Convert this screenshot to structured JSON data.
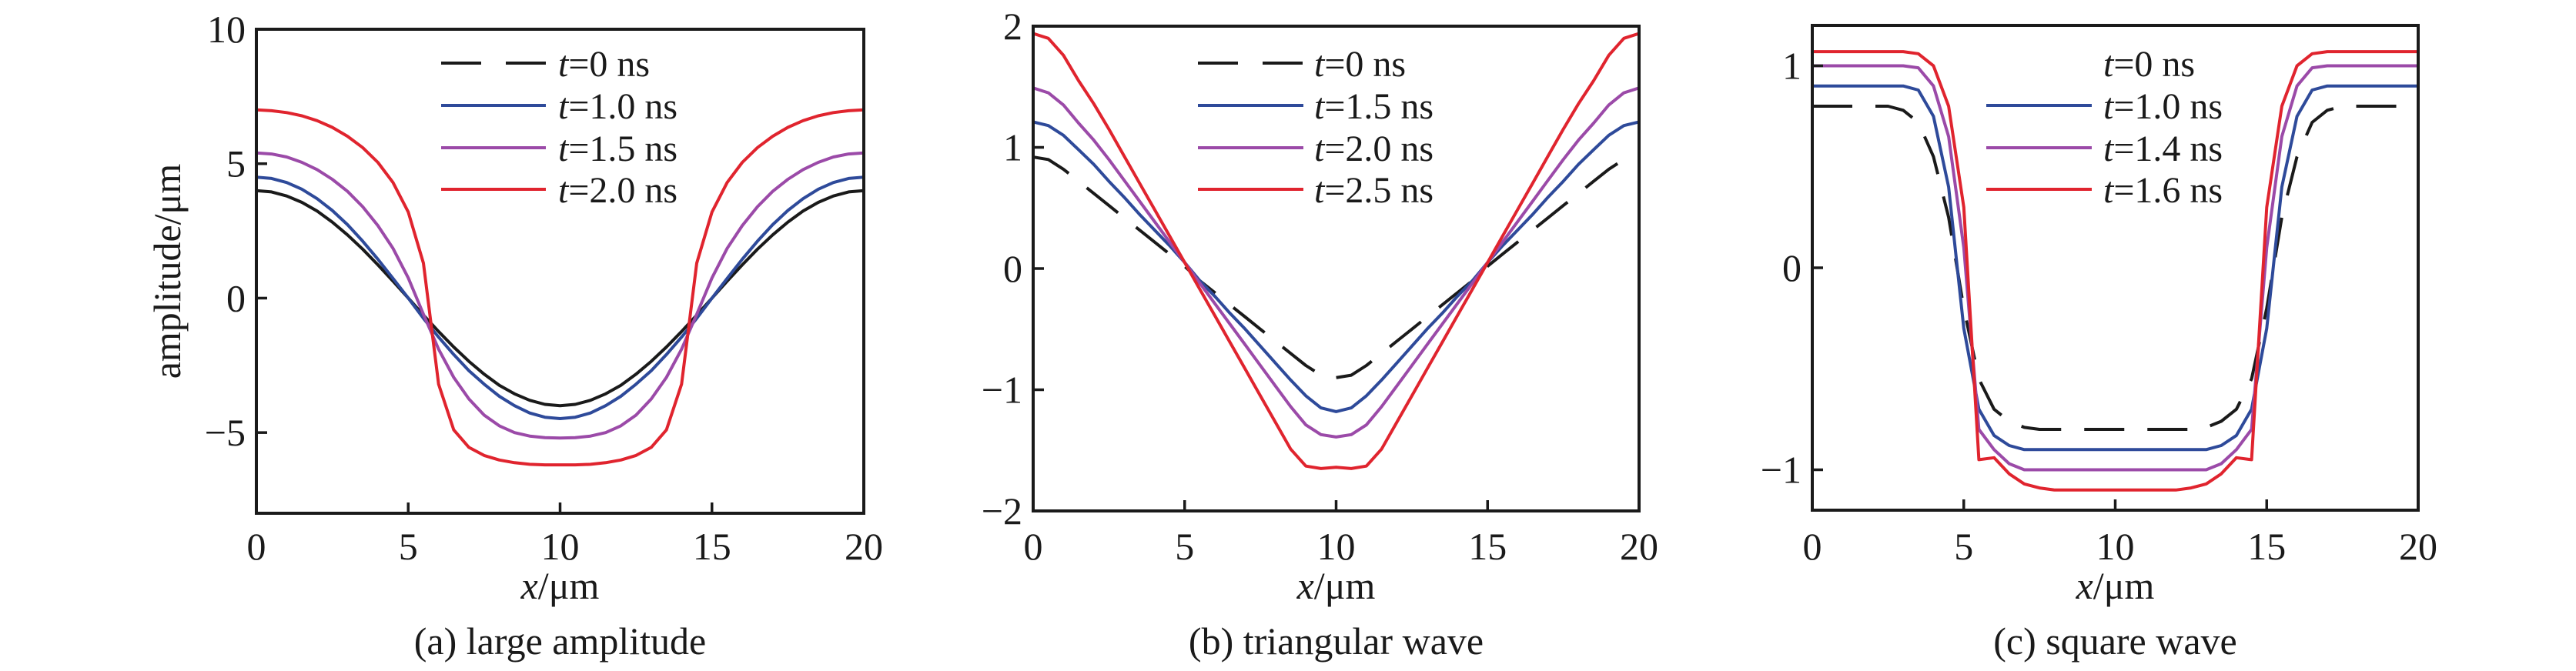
{
  "chart_data": [
    {
      "type": "line",
      "panel": "a",
      "caption": "(a) large amplitude",
      "title": "",
      "xlabel_var": "x",
      "xlabel_unit": "/μm",
      "ylabel": "amplitude/μm",
      "xlim": [
        0,
        20
      ],
      "ylim": [
        -8,
        10
      ],
      "xticks": [
        0,
        5,
        10,
        15,
        20
      ],
      "xtick_labels": [
        "0",
        "5",
        "10",
        "15",
        "20"
      ],
      "yticks": [
        -5,
        0,
        5,
        10
      ],
      "ytick_labels": [
        "−5",
        "0",
        "5",
        "10"
      ],
      "legend_placement": "top-center",
      "x": [
        0,
        0.5,
        1,
        1.5,
        2,
        2.5,
        3,
        3.5,
        4,
        4.5,
        5,
        5.5,
        6,
        6.5,
        7,
        7.5,
        8,
        8.5,
        9,
        9.5,
        10,
        10.5,
        11,
        11.5,
        12,
        12.5,
        13,
        13.5,
        14,
        14.5,
        15,
        15.5,
        16,
        16.5,
        17,
        17.5,
        18,
        18.5,
        19,
        19.5,
        20
      ],
      "series": [
        {
          "name_var": "t",
          "name_rest": "=0 ns",
          "color": "#1a1a1a",
          "style": "solid",
          "legend_style": "dashed",
          "values": [
            4,
            3.95,
            3.8,
            3.56,
            3.24,
            2.83,
            2.35,
            1.82,
            1.24,
            0.63,
            0,
            -0.63,
            -1.24,
            -1.82,
            -2.35,
            -2.83,
            -3.24,
            -3.56,
            -3.8,
            -3.95,
            -4,
            -3.95,
            -3.8,
            -3.56,
            -3.24,
            -2.83,
            -2.35,
            -1.82,
            -1.24,
            -0.63,
            0,
            0.63,
            1.24,
            1.82,
            2.35,
            2.83,
            3.24,
            3.56,
            3.8,
            3.95,
            4
          ]
        },
        {
          "name_var": "t",
          "name_rest": "=1.0 ns",
          "color": "#2e4a9a",
          "style": "solid",
          "legend_style": "solid",
          "values": [
            4.5,
            4.45,
            4.3,
            4.05,
            3.7,
            3.26,
            2.73,
            2.12,
            1.45,
            0.73,
            0,
            -0.75,
            -1.45,
            -2.1,
            -2.7,
            -3.2,
            -3.65,
            -4,
            -4.27,
            -4.43,
            -4.48,
            -4.43,
            -4.27,
            -4,
            -3.65,
            -3.2,
            -2.7,
            -2.1,
            -1.45,
            -0.75,
            0,
            0.73,
            1.45,
            2.12,
            2.73,
            3.26,
            3.7,
            4.05,
            4.3,
            4.45,
            4.5
          ]
        },
        {
          "name_var": "t",
          "name_rest": "=1.5 ns",
          "color": "#9b4aa8",
          "style": "solid",
          "legend_style": "solid",
          "values": [
            5.4,
            5.36,
            5.25,
            5.05,
            4.78,
            4.42,
            3.97,
            3.4,
            2.7,
            1.85,
            0.75,
            -0.6,
            -1.9,
            -2.95,
            -3.75,
            -4.35,
            -4.75,
            -5,
            -5.13,
            -5.19,
            -5.2,
            -5.19,
            -5.13,
            -5,
            -4.75,
            -4.35,
            -3.75,
            -2.95,
            -1.9,
            -0.6,
            0.75,
            1.85,
            2.7,
            3.4,
            3.97,
            4.42,
            4.78,
            5.05,
            5.25,
            5.36,
            5.4
          ]
        },
        {
          "name_var": "t",
          "name_rest": "=2.0 ns",
          "color": "#e0242e",
          "style": "solid",
          "legend_style": "solid",
          "values": [
            7,
            6.97,
            6.9,
            6.78,
            6.6,
            6.35,
            6.02,
            5.6,
            5.05,
            4.3,
            3.2,
            1.3,
            -3.2,
            -4.9,
            -5.55,
            -5.85,
            -6.02,
            -6.12,
            -6.18,
            -6.2,
            -6.2,
            -6.2,
            -6.18,
            -6.12,
            -6.02,
            -5.85,
            -5.55,
            -4.9,
            -3.2,
            1.3,
            3.2,
            4.3,
            5.05,
            5.6,
            6.02,
            6.35,
            6.6,
            6.78,
            6.9,
            6.97,
            7
          ]
        }
      ]
    },
    {
      "type": "line",
      "panel": "b",
      "caption": "(b) triangular wave",
      "title": "",
      "xlabel_var": "x",
      "xlabel_unit": "/μm",
      "ylabel": "",
      "xlim": [
        0,
        20
      ],
      "ylim": [
        -2,
        2
      ],
      "xticks": [
        0,
        5,
        10,
        15,
        20
      ],
      "xtick_labels": [
        "0",
        "5",
        "10",
        "15",
        "20"
      ],
      "yticks": [
        -2,
        -1,
        0,
        1,
        2
      ],
      "ytick_labels": [
        "−2",
        "−1",
        "0",
        "1",
        "2"
      ],
      "legend_placement": "top-center",
      "x": [
        0,
        0.5,
        1,
        1.5,
        2,
        2.5,
        3,
        3.5,
        4,
        4.5,
        5,
        5.5,
        6,
        6.5,
        7,
        7.5,
        8,
        8.5,
        9,
        9.5,
        10,
        10.5,
        11,
        11.5,
        12,
        12.5,
        13,
        13.5,
        14,
        14.5,
        15,
        15.5,
        16,
        16.5,
        17,
        17.5,
        18,
        18.5,
        19,
        19.5,
        20
      ],
      "series": [
        {
          "name_var": "t",
          "name_rest": "=0 ns",
          "color": "#1a1a1a",
          "style": "dashed",
          "legend_style": "dashed",
          "values": [
            0.92,
            0.9,
            0.82,
            0.72,
            0.62,
            0.52,
            0.42,
            0.32,
            0.22,
            0.12,
            0.02,
            -0.1,
            -0.2,
            -0.3,
            -0.4,
            -0.5,
            -0.6,
            -0.7,
            -0.8,
            -0.88,
            -0.9,
            -0.88,
            -0.8,
            -0.7,
            -0.6,
            -0.5,
            -0.4,
            -0.3,
            -0.2,
            -0.1,
            0.02,
            0.12,
            0.22,
            0.32,
            0.42,
            0.52,
            0.62,
            0.72,
            0.82,
            0.9,
            0.92
          ]
        },
        {
          "name_var": "t",
          "name_rest": "=1.5 ns",
          "color": "#2e4a9a",
          "style": "solid",
          "legend_style": "solid",
          "values": [
            1.21,
            1.18,
            1.1,
            0.98,
            0.86,
            0.72,
            0.59,
            0.45,
            0.32,
            0.19,
            0.05,
            -0.1,
            -0.23,
            -0.37,
            -0.5,
            -0.64,
            -0.78,
            -0.92,
            -1.05,
            -1.15,
            -1.18,
            -1.15,
            -1.05,
            -0.92,
            -0.78,
            -0.64,
            -0.5,
            -0.37,
            -0.23,
            -0.1,
            0.05,
            0.19,
            0.32,
            0.45,
            0.59,
            0.72,
            0.86,
            0.98,
            1.1,
            1.18,
            1.21
          ]
        },
        {
          "name_var": "t",
          "name_rest": "=2.0 ns",
          "color": "#9b4aa8",
          "style": "solid",
          "legend_style": "solid",
          "values": [
            1.49,
            1.45,
            1.35,
            1.2,
            1.06,
            0.9,
            0.73,
            0.56,
            0.39,
            0.22,
            0.05,
            -0.12,
            -0.29,
            -0.46,
            -0.63,
            -0.8,
            -0.97,
            -1.14,
            -1.29,
            -1.37,
            -1.39,
            -1.37,
            -1.29,
            -1.14,
            -0.97,
            -0.8,
            -0.63,
            -0.46,
            -0.29,
            -0.12,
            0.05,
            0.22,
            0.39,
            0.56,
            0.73,
            0.9,
            1.06,
            1.2,
            1.35,
            1.45,
            1.49
          ]
        },
        {
          "name_var": "t",
          "name_rest": "=2.5 ns",
          "color": "#e0242e",
          "style": "solid",
          "legend_style": "solid",
          "values": [
            1.94,
            1.9,
            1.76,
            1.55,
            1.36,
            1.15,
            0.93,
            0.71,
            0.49,
            0.27,
            0.05,
            -0.17,
            -0.39,
            -0.61,
            -0.83,
            -1.05,
            -1.27,
            -1.49,
            -1.63,
            -1.65,
            -1.64,
            -1.65,
            -1.63,
            -1.49,
            -1.27,
            -1.05,
            -0.83,
            -0.61,
            -0.39,
            -0.17,
            0.05,
            0.27,
            0.49,
            0.71,
            0.93,
            1.15,
            1.36,
            1.55,
            1.76,
            1.9,
            1.94
          ]
        }
      ]
    },
    {
      "type": "line",
      "panel": "c",
      "caption": "(c) square wave",
      "title": "",
      "xlabel_var": "x",
      "xlabel_unit": "/μm",
      "ylabel": "",
      "xlim": [
        0,
        20
      ],
      "ylim": [
        -1.2,
        1.2
      ],
      "xticks": [
        0,
        5,
        10,
        15,
        20
      ],
      "xtick_labels": [
        "0",
        "5",
        "10",
        "15",
        "20"
      ],
      "yticks": [
        -1,
        0,
        1
      ],
      "ytick_labels": [
        "−1",
        "0",
        "1"
      ],
      "legend_placement": "top-center",
      "x": [
        0,
        0.5,
        1,
        1.5,
        2,
        2.5,
        3,
        3.5,
        4,
        4.5,
        5,
        5.5,
        6,
        6.5,
        7,
        7.5,
        8,
        8.5,
        9,
        9.5,
        10,
        10.5,
        11,
        11.5,
        12,
        12.5,
        13,
        13.5,
        14,
        14.5,
        15,
        15.5,
        16,
        16.5,
        17,
        17.5,
        18,
        18.5,
        19,
        19.5,
        20
      ],
      "series": [
        {
          "name_var": "t",
          "name_rest": "=0 ns",
          "color": "#1a1a1a",
          "style": "dashed",
          "legend_style": "none",
          "values": [
            0.8,
            0.8,
            0.8,
            0.8,
            0.8,
            0.8,
            0.78,
            0.72,
            0.55,
            0.25,
            -0.2,
            -0.55,
            -0.7,
            -0.76,
            -0.79,
            -0.8,
            -0.8,
            -0.8,
            -0.8,
            -0.8,
            -0.8,
            -0.8,
            -0.8,
            -0.8,
            -0.8,
            -0.8,
            -0.79,
            -0.76,
            -0.7,
            -0.55,
            -0.2,
            0.25,
            0.55,
            0.72,
            0.78,
            0.8,
            0.8,
            0.8,
            0.8,
            0.8,
            0.8
          ]
        },
        {
          "name_var": "t",
          "name_rest": "=1.0 ns",
          "color": "#2e4a9a",
          "style": "solid",
          "legend_style": "solid",
          "values": [
            0.9,
            0.9,
            0.9,
            0.9,
            0.9,
            0.9,
            0.9,
            0.88,
            0.75,
            0.4,
            -0.3,
            -0.7,
            -0.83,
            -0.88,
            -0.9,
            -0.9,
            -0.9,
            -0.9,
            -0.9,
            -0.9,
            -0.9,
            -0.9,
            -0.9,
            -0.9,
            -0.9,
            -0.9,
            -0.9,
            -0.88,
            -0.83,
            -0.7,
            -0.3,
            0.4,
            0.75,
            0.88,
            0.9,
            0.9,
            0.9,
            0.9,
            0.9,
            0.9,
            0.9
          ]
        },
        {
          "name_var": "t",
          "name_rest": "=1.4 ns",
          "color": "#9b4aa8",
          "style": "solid",
          "legend_style": "solid",
          "values": [
            1,
            1,
            1,
            1,
            1,
            1,
            1,
            0.99,
            0.9,
            0.65,
            0.1,
            -0.8,
            -0.9,
            -0.97,
            -1,
            -1,
            -1,
            -1,
            -1,
            -1,
            -1,
            -1,
            -1,
            -1,
            -1,
            -1,
            -1,
            -0.97,
            -0.9,
            -0.8,
            0.1,
            0.65,
            0.9,
            0.99,
            1,
            1,
            1,
            1,
            1,
            1,
            1
          ]
        },
        {
          "name_var": "t",
          "name_rest": "=1.6 ns",
          "color": "#e0242e",
          "style": "solid",
          "legend_style": "solid",
          "values": [
            1.07,
            1.07,
            1.07,
            1.07,
            1.07,
            1.07,
            1.07,
            1.06,
            1,
            0.8,
            0.3,
            -0.95,
            -0.94,
            -1.02,
            -1.07,
            -1.09,
            -1.1,
            -1.1,
            -1.1,
            -1.1,
            -1.1,
            -1.1,
            -1.1,
            -1.1,
            -1.1,
            -1.09,
            -1.07,
            -1.02,
            -0.94,
            -0.95,
            0.3,
            0.8,
            1,
            1.06,
            1.07,
            1.07,
            1.07,
            1.07,
            1.07,
            1.07,
            1.07
          ]
        }
      ]
    }
  ]
}
